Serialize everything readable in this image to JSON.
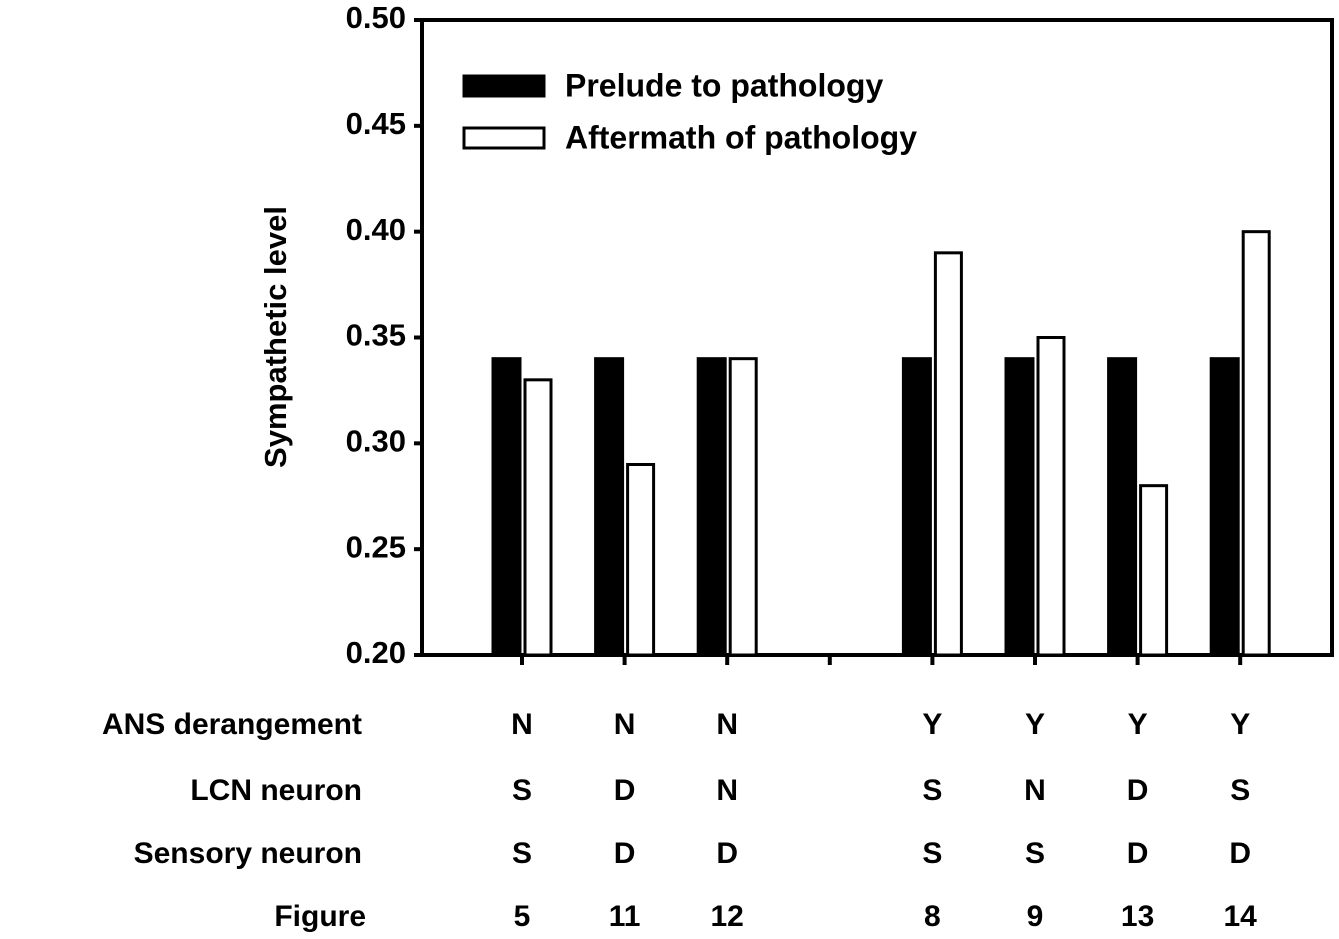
{
  "chart_data": {
    "type": "bar",
    "ylabel": "Sympathetic level",
    "categories": [
      "5",
      "11",
      "12",
      null,
      "8",
      "9",
      "13",
      "14"
    ],
    "category_row_label": "Figure",
    "series": [
      {
        "name": "Prelude to pathology",
        "color": "#000000",
        "values": [
          0.34,
          0.34,
          0.34,
          null,
          0.34,
          0.34,
          0.34,
          0.34
        ]
      },
      {
        "name": "Aftermath of pathology",
        "color": "#ffffff",
        "values": [
          0.33,
          0.29,
          0.34,
          null,
          0.39,
          0.35,
          0.28,
          0.4
        ]
      }
    ],
    "rows": [
      {
        "label": "ANS derangement",
        "values": [
          "N",
          "N",
          "N",
          null,
          "Y",
          "Y",
          "Y",
          "Y"
        ]
      },
      {
        "label": "LCN neuron",
        "values": [
          "S",
          "D",
          "N",
          null,
          "S",
          "N",
          "D",
          "S"
        ]
      },
      {
        "label": "Sensory neuron",
        "values": [
          "S",
          "D",
          "D",
          null,
          "S",
          "S",
          "D",
          "D"
        ]
      }
    ],
    "ylim": [
      0.2,
      0.5
    ],
    "yticks": [
      {
        "value": 0.2,
        "label": "0.20"
      },
      {
        "value": 0.25,
        "label": "0.25"
      },
      {
        "value": 0.3,
        "label": "0.30"
      },
      {
        "value": 0.35,
        "label": "0.35"
      },
      {
        "value": 0.4,
        "label": "0.40"
      },
      {
        "value": 0.45,
        "label": "0.45"
      },
      {
        "value": 0.5,
        "label": "0.50"
      }
    ],
    "legend": "upper left"
  }
}
